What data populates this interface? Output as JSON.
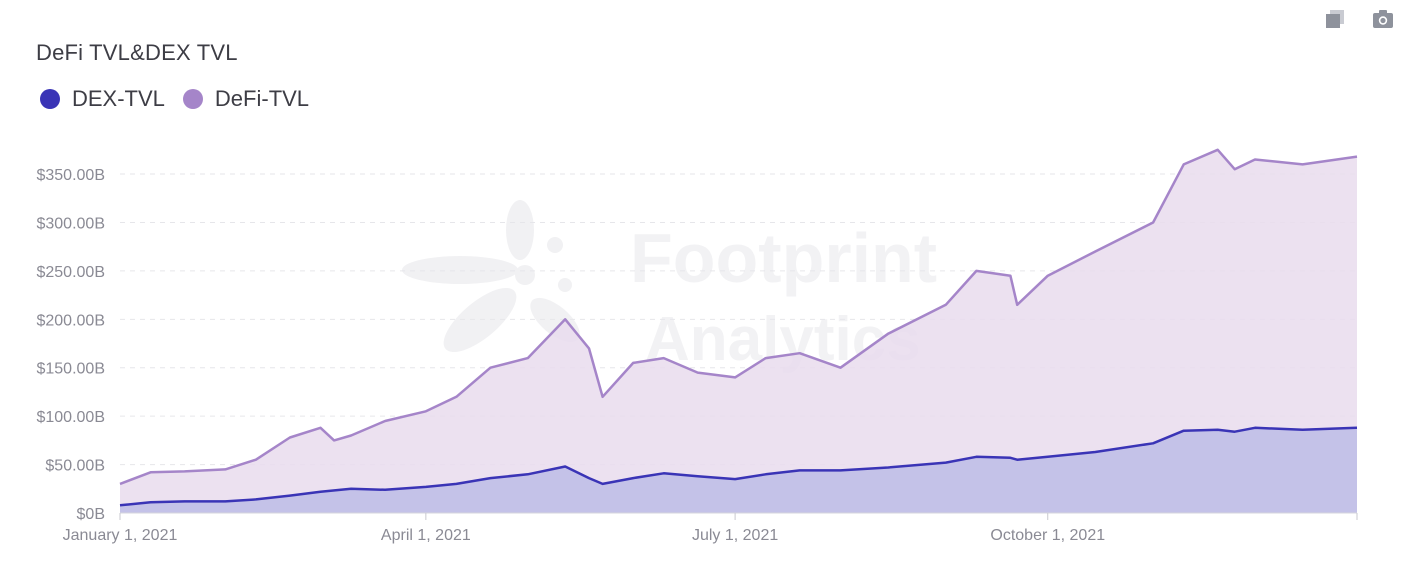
{
  "title": "DeFi TVL&DEX TVL",
  "toolbar": {
    "buttons": [
      {
        "icon": "duplicate-icon"
      },
      {
        "icon": "camera-icon"
      }
    ]
  },
  "watermark": {
    "line1": "Footprint",
    "line2": "Analytics"
  },
  "colors": {
    "dex_line": "#3a34b6",
    "dex_fill": "#c4c2e8",
    "defi_line": "#a585c9",
    "defi_fill": "#e9dced",
    "axis_text": "#8a8a94",
    "grid": "#e6e6ea"
  },
  "chart_data": {
    "type": "area",
    "title": "DeFi TVL&DEX TVL",
    "legend_position": "top-left",
    "grid": true,
    "x_ticks": [
      "January 1, 2021",
      "April 1, 2021",
      "July 1, 2021",
      "October 1, 2021"
    ],
    "y_ticks": [
      "$0B",
      "$50.00B",
      "$100.00B",
      "$150.00B",
      "$200.00B",
      "$250.00B",
      "$300.00B",
      "$350.00B"
    ],
    "ylim": [
      0,
      380
    ],
    "xlim": [
      "2021-01-01",
      "2021-12-31"
    ],
    "series": [
      {
        "name": "DEX-TVL",
        "points": [
          [
            "2021-01-01",
            8
          ],
          [
            "2021-01-10",
            11
          ],
          [
            "2021-01-20",
            12
          ],
          [
            "2021-02-01",
            12
          ],
          [
            "2021-02-10",
            14
          ],
          [
            "2021-02-20",
            18
          ],
          [
            "2021-03-01",
            22
          ],
          [
            "2021-03-10",
            25
          ],
          [
            "2021-03-20",
            24
          ],
          [
            "2021-04-01",
            27
          ],
          [
            "2021-04-10",
            30
          ],
          [
            "2021-04-20",
            36
          ],
          [
            "2021-05-01",
            40
          ],
          [
            "2021-05-12",
            48
          ],
          [
            "2021-05-19",
            36
          ],
          [
            "2021-05-23",
            30
          ],
          [
            "2021-06-01",
            36
          ],
          [
            "2021-06-10",
            41
          ],
          [
            "2021-06-20",
            38
          ],
          [
            "2021-07-01",
            35
          ],
          [
            "2021-07-10",
            40
          ],
          [
            "2021-07-20",
            44
          ],
          [
            "2021-08-01",
            44
          ],
          [
            "2021-08-15",
            47
          ],
          [
            "2021-09-01",
            52
          ],
          [
            "2021-09-10",
            58
          ],
          [
            "2021-09-20",
            57
          ],
          [
            "2021-09-22",
            55
          ],
          [
            "2021-10-01",
            58
          ],
          [
            "2021-10-15",
            63
          ],
          [
            "2021-11-01",
            72
          ],
          [
            "2021-11-10",
            85
          ],
          [
            "2021-11-20",
            86
          ],
          [
            "2021-11-25",
            84
          ],
          [
            "2021-12-01",
            88
          ],
          [
            "2021-12-15",
            86
          ],
          [
            "2021-12-31",
            88
          ]
        ]
      },
      {
        "name": "DeFi-TVL",
        "points": [
          [
            "2021-01-01",
            30
          ],
          [
            "2021-01-10",
            42
          ],
          [
            "2021-01-20",
            43
          ],
          [
            "2021-02-01",
            45
          ],
          [
            "2021-02-10",
            55
          ],
          [
            "2021-02-20",
            78
          ],
          [
            "2021-03-01",
            88
          ],
          [
            "2021-03-05",
            75
          ],
          [
            "2021-03-10",
            80
          ],
          [
            "2021-03-20",
            95
          ],
          [
            "2021-04-01",
            105
          ],
          [
            "2021-04-10",
            120
          ],
          [
            "2021-04-20",
            150
          ],
          [
            "2021-05-01",
            160
          ],
          [
            "2021-05-12",
            200
          ],
          [
            "2021-05-19",
            170
          ],
          [
            "2021-05-23",
            120
          ],
          [
            "2021-06-01",
            155
          ],
          [
            "2021-06-10",
            160
          ],
          [
            "2021-06-20",
            145
          ],
          [
            "2021-07-01",
            140
          ],
          [
            "2021-07-10",
            160
          ],
          [
            "2021-07-20",
            165
          ],
          [
            "2021-08-01",
            150
          ],
          [
            "2021-08-15",
            185
          ],
          [
            "2021-09-01",
            215
          ],
          [
            "2021-09-10",
            250
          ],
          [
            "2021-09-20",
            245
          ],
          [
            "2021-09-22",
            215
          ],
          [
            "2021-10-01",
            245
          ],
          [
            "2021-10-15",
            270
          ],
          [
            "2021-11-01",
            300
          ],
          [
            "2021-11-10",
            360
          ],
          [
            "2021-11-20",
            375
          ],
          [
            "2021-11-25",
            355
          ],
          [
            "2021-12-01",
            365
          ],
          [
            "2021-12-15",
            360
          ],
          [
            "2021-12-31",
            368
          ]
        ]
      }
    ]
  }
}
